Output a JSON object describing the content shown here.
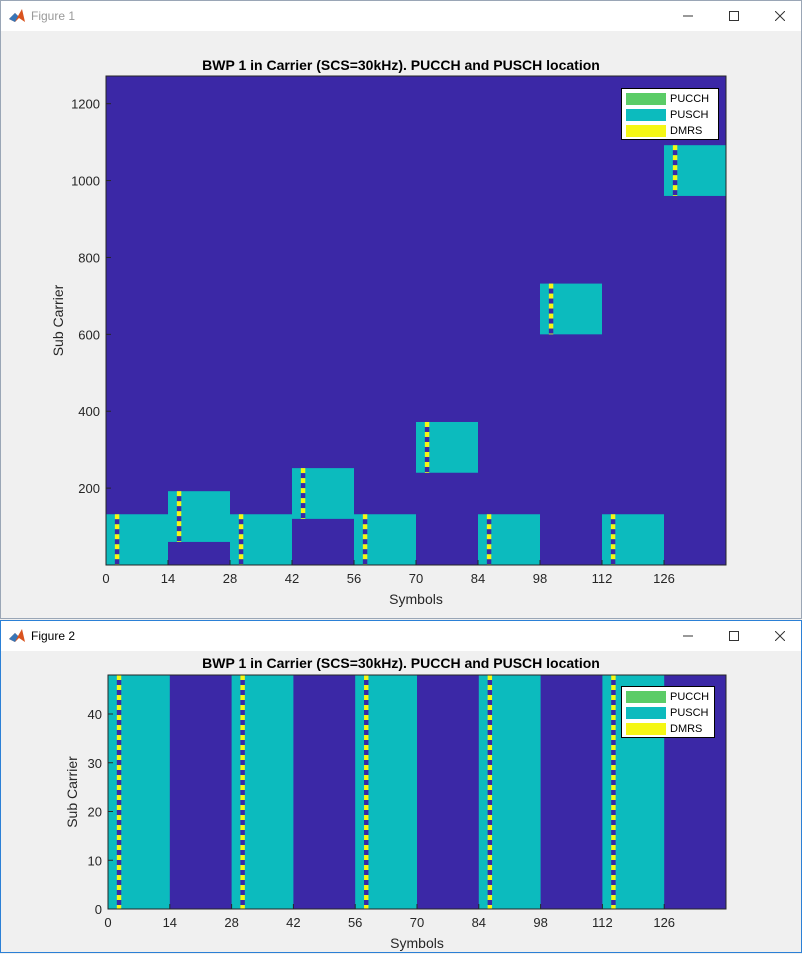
{
  "colors": {
    "background_band": "#3b28a6",
    "pucch": "#5bcc67",
    "pusch": "#0cbbbe",
    "dmrs": "#f5f714",
    "window_bg": "#f0f0f0"
  },
  "window1": {
    "title": "Figure 1",
    "minimize_icon": "minimize-icon",
    "maximize_icon": "maximize-icon",
    "close_icon": "close-icon",
    "chart": {
      "title": "BWP 1 in Carrier (SCS=30kHz). PUCCH and PUSCH location",
      "xlabel": "Symbols",
      "ylabel": "Sub Carrier"
    }
  },
  "window2": {
    "title": "Figure 2",
    "minimize_icon": "minimize-icon",
    "maximize_icon": "maximize-icon",
    "close_icon": "close-icon",
    "chart": {
      "title": "BWP 1 in Carrier (SCS=30kHz). PUCCH and PUSCH location",
      "xlabel": "Symbols",
      "ylabel": "Sub Carrier"
    }
  },
  "legend": [
    "PUCCH",
    "PUSCH",
    "DMRS"
  ],
  "chart_data": [
    {
      "type": "heatmap",
      "title": "BWP 1 in Carrier (SCS=30kHz). PUCCH and PUSCH location",
      "xlabel": "Symbols",
      "ylabel": "Sub Carrier",
      "xlim": [
        0,
        140
      ],
      "ylim": [
        0,
        1272
      ],
      "xticks": [
        0,
        14,
        28,
        42,
        56,
        70,
        84,
        98,
        112,
        126
      ],
      "yticks": [
        200,
        400,
        600,
        800,
        1000,
        1200
      ],
      "legend": [
        "PUCCH",
        "PUSCH",
        "DMRS"
      ],
      "legend_position": "top-right",
      "pusch_allocations": [
        {
          "symbols": [
            0,
            13
          ],
          "subcarriers": [
            0,
            132
          ],
          "dmrs_symbol": 2
        },
        {
          "symbols": [
            14,
            27
          ],
          "subcarriers": [
            60,
            192
          ],
          "dmrs_symbol": 16
        },
        {
          "symbols": [
            28,
            41
          ],
          "subcarriers": [
            0,
            132
          ],
          "dmrs_symbol": 30
        },
        {
          "symbols": [
            42,
            55
          ],
          "subcarriers": [
            120,
            252
          ],
          "dmrs_symbol": 44
        },
        {
          "symbols": [
            56,
            69
          ],
          "subcarriers": [
            0,
            132
          ],
          "dmrs_symbol": 58
        },
        {
          "symbols": [
            70,
            83
          ],
          "subcarriers": [
            240,
            372
          ],
          "dmrs_symbol": 72
        },
        {
          "symbols": [
            84,
            97
          ],
          "subcarriers": [
            0,
            132
          ],
          "dmrs_symbol": 86
        },
        {
          "symbols": [
            98,
            111
          ],
          "subcarriers": [
            600,
            732
          ],
          "dmrs_symbol": 100
        },
        {
          "symbols": [
            112,
            125
          ],
          "subcarriers": [
            0,
            132
          ],
          "dmrs_symbol": 114
        },
        {
          "symbols": [
            126,
            139
          ],
          "subcarriers": [
            960,
            1092
          ],
          "dmrs_symbol": 128
        }
      ]
    },
    {
      "type": "heatmap",
      "title": "BWP 1 in Carrier (SCS=30kHz). PUCCH and PUSCH location",
      "xlabel": "Symbols",
      "ylabel": "Sub Carrier",
      "xlim": [
        0,
        140
      ],
      "ylim": [
        0,
        48
      ],
      "xticks": [
        0,
        14,
        28,
        42,
        56,
        70,
        84,
        98,
        112,
        126
      ],
      "yticks": [
        0,
        10,
        20,
        30,
        40
      ],
      "legend": [
        "PUCCH",
        "PUSCH",
        "DMRS"
      ],
      "legend_position": "top-right",
      "pusch_allocations": [
        {
          "symbols": [
            0,
            13
          ],
          "subcarriers": [
            0,
            48
          ],
          "dmrs_symbol": 2
        },
        {
          "symbols": [
            28,
            41
          ],
          "subcarriers": [
            0,
            48
          ],
          "dmrs_symbol": 30
        },
        {
          "symbols": [
            56,
            69
          ],
          "subcarriers": [
            0,
            48
          ],
          "dmrs_symbol": 58
        },
        {
          "symbols": [
            84,
            97
          ],
          "subcarriers": [
            0,
            48
          ],
          "dmrs_symbol": 86
        },
        {
          "symbols": [
            112,
            125
          ],
          "subcarriers": [
            0,
            48
          ],
          "dmrs_symbol": 114
        }
      ]
    }
  ]
}
